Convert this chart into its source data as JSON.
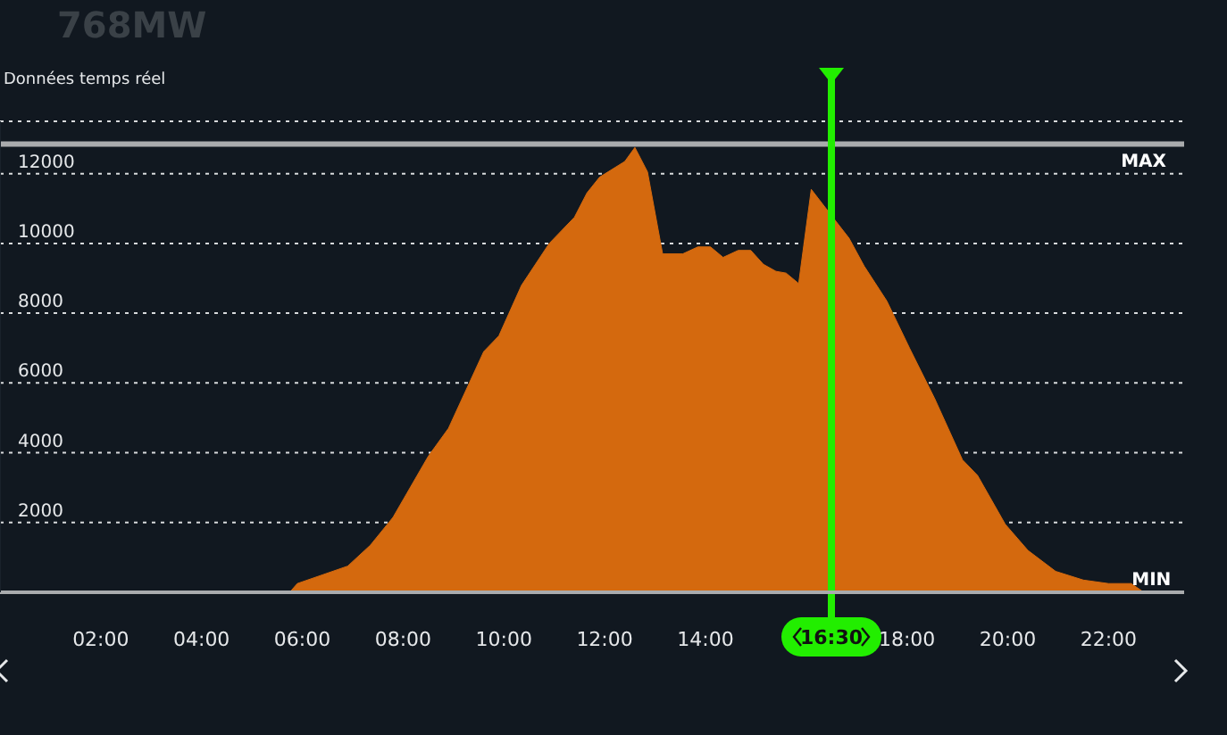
{
  "chart_data": {
    "type": "area",
    "title": "768MW",
    "subtitle": "Données temps réel",
    "x": [
      5.75,
      5.9,
      6.4,
      6.9,
      7.35,
      7.8,
      8.5,
      8.9,
      9.6,
      9.9,
      10.35,
      10.9,
      11.4,
      11.65,
      11.9,
      12.4,
      12.6,
      12.85,
      13.15,
      13.55,
      13.85,
      14.1,
      14.35,
      14.65,
      14.9,
      15.15,
      15.4,
      15.6,
      15.85,
      16.1,
      16.5,
      16.85,
      17.15,
      17.6,
      18.05,
      18.55,
      19.1,
      19.4,
      19.95,
      20.4,
      20.95,
      21.5,
      22,
      22.45,
      22.7
    ],
    "series": [
      {
        "color": "#d4690e",
        "values": [
          0,
          250,
          500,
          750,
          1350,
          2150,
          3900,
          4700,
          6900,
          7350,
          8800,
          10000,
          10750,
          11450,
          11900,
          12350,
          12750,
          12050,
          9700,
          9700,
          9900,
          9900,
          9600,
          9800,
          9800,
          9400,
          9200,
          9150,
          8850,
          11550,
          10800,
          10150,
          9350,
          8350,
          7000,
          5550,
          3800,
          3350,
          1950,
          1200,
          600,
          350,
          250,
          250,
          0
        ]
      }
    ],
    "xlim": [
      0,
      23.5
    ],
    "xticks": [
      {
        "value": 2,
        "label": "02:00"
      },
      {
        "value": 4,
        "label": "04:00"
      },
      {
        "value": 6,
        "label": "06:00"
      },
      {
        "value": 8,
        "label": "08:00"
      },
      {
        "value": 10,
        "label": "10:00"
      },
      {
        "value": 12,
        "label": "12:00"
      },
      {
        "value": 14,
        "label": "14:00"
      },
      {
        "value": 18,
        "label": "18:00"
      },
      {
        "value": 20,
        "label": "20:00"
      },
      {
        "value": 22,
        "label": "22:00"
      }
    ],
    "ylim": [
      0,
      13500
    ],
    "yticks": [
      2000,
      4000,
      6000,
      8000,
      10000,
      12000
    ],
    "grid": "y",
    "marker": "none",
    "annotations": [
      {
        "text": "MIN",
        "x": 22.85,
        "y": 0
      }
    ],
    "ref_lines": [
      {
        "axis": "y",
        "value": 12850,
        "label": "MAX",
        "color": "#a9abad"
      },
      {
        "axis": "x",
        "value": 16.5,
        "label": "16:30",
        "color": "#22ee00"
      }
    ]
  }
}
